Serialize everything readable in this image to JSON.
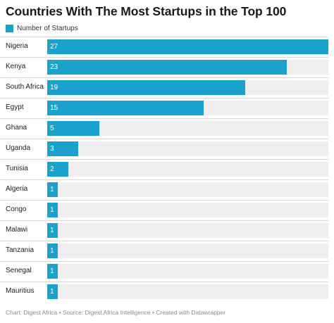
{
  "chart_data": {
    "type": "bar",
    "orientation": "horizontal",
    "title": "Countries With The Most Startups in the Top 100",
    "legend": {
      "placement": "top-left",
      "entries": [
        "Number of Startups"
      ]
    },
    "categories": [
      "Nigeria",
      "Kenya",
      "South Africa",
      "Egypt",
      "Ghana",
      "Uganda",
      "Tunisia",
      "Algeria",
      "Congo",
      "Malawi",
      "Tanzania",
      "Senegal",
      "Mauritius"
    ],
    "series": [
      {
        "name": "Number of Startups",
        "values": [
          27,
          23,
          19,
          15,
          5,
          3,
          2,
          1,
          1,
          1,
          1,
          1,
          1
        ],
        "color": "#1ba2cc"
      }
    ],
    "xlim": [
      0,
      27
    ],
    "grid": false,
    "data_labels": true
  },
  "footer": {
    "credit": "Chart: Digest Africa • Source: Digest Africa Intelligence • Created with Datawrapper"
  },
  "colors": {
    "bar": "#1ba2cc",
    "track": "#efefef"
  }
}
